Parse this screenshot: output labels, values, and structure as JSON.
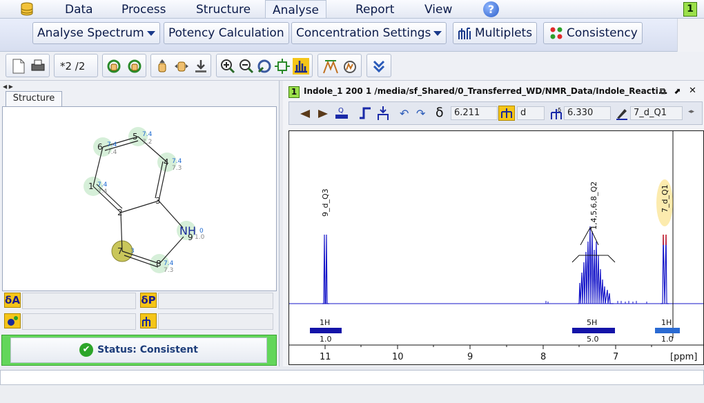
{
  "menu": {
    "items": [
      "Data",
      "Process",
      "Structure",
      "Analyse",
      "Report",
      "View"
    ],
    "active": "Analyse",
    "page_badge": "1",
    "help_label": "?"
  },
  "ribbon": {
    "analyse_spectrum": "Analyse Spectrum",
    "potency": "Potency Calculation",
    "concentration": "Concentration Settings",
    "multiplets": "Multiplets",
    "consistency": "Consistency"
  },
  "toolbar": {
    "page_counter": "*2 /2"
  },
  "structure_panel": {
    "tab_label": "Structure",
    "atoms": [
      {
        "label": "1",
        "shift_a": "7.4",
        "shift_b": "7.4"
      },
      {
        "label": "2"
      },
      {
        "label": "3"
      },
      {
        "label": "4",
        "shift_a": "7.4",
        "shift_b": "7.3"
      },
      {
        "label": "5",
        "shift_a": "7.4",
        "shift_b": "7.2"
      },
      {
        "label": "6",
        "shift_a": "7.4",
        "shift_b": "7.4"
      },
      {
        "label": "7",
        "shift_a": "3",
        "shift_b": ""
      },
      {
        "label": "8",
        "shift_a": "7.4",
        "shift_b": "7.3"
      },
      {
        "label": "9",
        "element": "NH",
        "shift_a": "0",
        "shift_b": "1.0"
      }
    ],
    "delta_a_label": "δA",
    "delta_p_label": "δP",
    "status_text": "Status: Consistent"
  },
  "spectrum": {
    "index": "1",
    "title": "Indole_1  200  1  /media/sf_Shared/0_Transferred_WD/NMR_Data/Indole_Reacti...",
    "delta_symbol": "δ",
    "shift_value": "6.211",
    "multiplicity": "d",
    "shift2_value": "6.330",
    "label_value": "7_d_Q1",
    "peaks": [
      {
        "label": "9_d_Q3",
        "integral_h": "1H",
        "integral_val": "1.0"
      },
      {
        "label": "1,4,5,6,8_Q2",
        "integral_h": "5H",
        "integral_val": "5.0"
      },
      {
        "label": "7_d_Q1",
        "integral_h": "1H",
        "integral_val": "1.0"
      }
    ],
    "axis_ticks": [
      "11",
      "10",
      "9",
      "8",
      "7"
    ],
    "axis_unit": "[ppm]"
  },
  "colors": {
    "spectrum_line": "#1414c8",
    "highlight": "#f5c518",
    "status_green": "#63d65a"
  }
}
